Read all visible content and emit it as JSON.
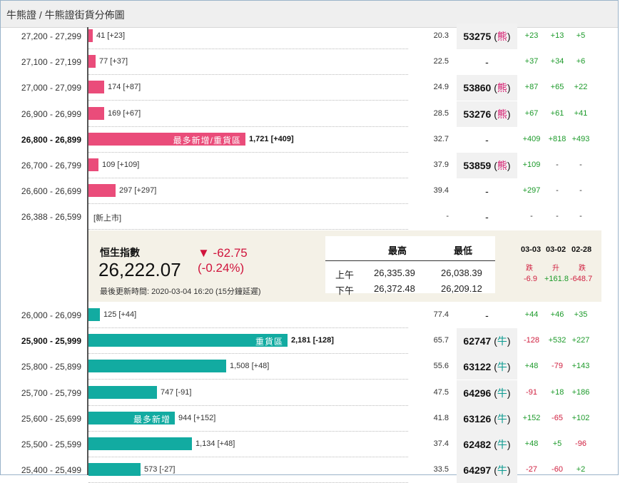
{
  "header": {
    "title": "牛熊證 / 牛熊證街貨分佈圖"
  },
  "colors": {
    "bear": "#ea4c7a",
    "bull": "#12aba1",
    "up": "#1c9a2a",
    "down": "#d02040",
    "panel": "#f4f1e7"
  },
  "scale": {
    "max_oi": 2181
  },
  "bear_rows": [
    {
      "range": "27,200 - 27,299",
      "oi_value": 41,
      "oi": "41 [+23]",
      "tag": "",
      "ratio": "20.3",
      "code": "53275",
      "dir": "熊",
      "c1": "+23",
      "c2": "+13",
      "c3": "+5"
    },
    {
      "range": "27,100 - 27,199",
      "oi_value": 77,
      "oi": "77 [+37]",
      "tag": "",
      "ratio": "22.5",
      "code": "-",
      "dir": "",
      "c1": "+37",
      "c2": "+34",
      "c3": "+6"
    },
    {
      "range": "27,000 - 27,099",
      "oi_value": 174,
      "oi": "174 [+87]",
      "tag": "",
      "ratio": "24.9",
      "code": "53860",
      "dir": "熊",
      "c1": "+87",
      "c2": "+65",
      "c3": "+22"
    },
    {
      "range": "26,900 - 26,999",
      "oi_value": 169,
      "oi": "169 [+67]",
      "tag": "",
      "ratio": "28.5",
      "code": "53276",
      "dir": "熊",
      "c1": "+67",
      "c2": "+61",
      "c3": "+41"
    },
    {
      "range": "26,800 - 26,899",
      "oi_value": 1721,
      "oi": "1,721 [+409]",
      "tag": "最多新增/重貨區",
      "ratio": "32.7",
      "code": "-",
      "dir": "",
      "c1": "+409",
      "c2": "+818",
      "c3": "+493",
      "bold": true
    },
    {
      "range": "26,700 - 26,799",
      "oi_value": 109,
      "oi": "109 [+109]",
      "tag": "",
      "ratio": "37.9",
      "code": "53859",
      "dir": "熊",
      "c1": "+109",
      "c2": "-",
      "c3": "-"
    },
    {
      "range": "26,600 - 26,699",
      "oi_value": 297,
      "oi": "297 [+297]",
      "tag": "",
      "ratio": "39.4",
      "code": "-",
      "dir": "",
      "c1": "+297",
      "c2": "-",
      "c3": "-"
    },
    {
      "range": "26,388 - 26,599",
      "oi_value": 0,
      "oi": "[新上市]",
      "tag": "",
      "ratio": "-",
      "code": "-",
      "dir": "",
      "c1": "-",
      "c2": "-",
      "c3": "-"
    }
  ],
  "hsi": {
    "label": "恒生指數",
    "value": "26,222.07",
    "change": "▼ -62.75",
    "change_pct": "(-0.24%)",
    "updated": "最後更新時間: 2020-03-04 16:20 (15分鐘延遲)",
    "hl_header_high": "最高",
    "hl_header_low": "最低",
    "am_label": "上午",
    "am_high": "26,335.39",
    "am_low": "26,038.39",
    "pm_label": "下午",
    "pm_high": "26,372.48",
    "pm_low": "26,209.12",
    "dates": [
      {
        "date": "03-03",
        "label": "跌",
        "value": "-6.9",
        "up": false
      },
      {
        "date": "03-02",
        "label": "升",
        "value": "+161.8",
        "up": true
      },
      {
        "date": "02-28",
        "label": "跌",
        "value": "-648.7",
        "up": false
      }
    ]
  },
  "bull_rows": [
    {
      "range": "26,000 - 26,099",
      "oi_value": 125,
      "oi": "125 [+44]",
      "tag": "",
      "ratio": "77.4",
      "code": "-",
      "dir": "",
      "c1": "+44",
      "c2": "+46",
      "c3": "+35"
    },
    {
      "range": "25,900 - 25,999",
      "oi_value": 2181,
      "oi": "2,181 [-128]",
      "tag": "重貨區",
      "ratio": "65.7",
      "code": "62747",
      "dir": "牛",
      "c1": "-128",
      "c2": "+532",
      "c3": "+227",
      "bold": true
    },
    {
      "range": "25,800 - 25,899",
      "oi_value": 1508,
      "oi": "1,508 [+48]",
      "tag": "",
      "ratio": "55.6",
      "code": "63122",
      "dir": "牛",
      "c1": "+48",
      "c2": "-79",
      "c3": "+143"
    },
    {
      "range": "25,700 - 25,799",
      "oi_value": 747,
      "oi": "747 [-91]",
      "tag": "",
      "ratio": "47.5",
      "code": "64296",
      "dir": "牛",
      "c1": "-91",
      "c2": "+18",
      "c3": "+186"
    },
    {
      "range": "25,600 - 25,699",
      "oi_value": 944,
      "oi": "944 [+152]",
      "tag": "最多新增",
      "ratio": "41.8",
      "code": "63126",
      "dir": "牛",
      "c1": "+152",
      "c2": "-65",
      "c3": "+102"
    },
    {
      "range": "25,500 - 25,599",
      "oi_value": 1134,
      "oi": "1,134 [+48]",
      "tag": "",
      "ratio": "37.4",
      "code": "62482",
      "dir": "牛",
      "c1": "+48",
      "c2": "+5",
      "c3": "-96"
    },
    {
      "range": "25,400 - 25,499",
      "oi_value": 573,
      "oi": "573 [-27]",
      "tag": "",
      "ratio": "33.5",
      "code": "64297",
      "dir": "牛",
      "c1": "-27",
      "c2": "-60",
      "c3": "+2"
    }
  ]
}
